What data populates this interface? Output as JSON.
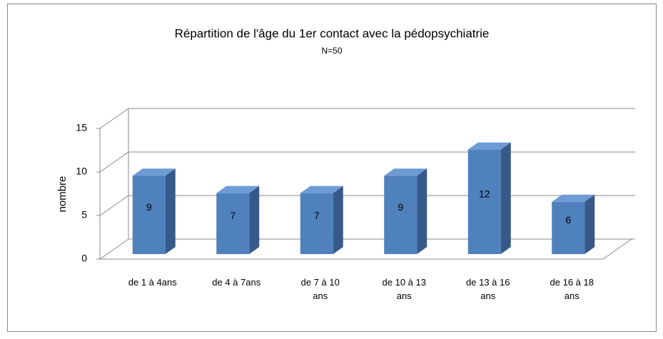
{
  "chart_data": {
    "type": "bar3d",
    "title": "Répartition de l'âge du 1er contact avec la pédopsychiatrie",
    "subtitle": "N=50",
    "y_label": "nombre",
    "categories": [
      "de 1 à 4ans",
      "de 4 à 7ans",
      "de 7 à 10 ans",
      "de 10 à 13 ans",
      "de 13 à 16 ans",
      "de 16 à 18 ans"
    ],
    "values": [
      9,
      7,
      7,
      9,
      12,
      6
    ],
    "color": "#4f81bd",
    "ylim": [
      0,
      15
    ],
    "yticks": [
      0,
      5,
      10,
      15
    ],
    "grid": true
  }
}
